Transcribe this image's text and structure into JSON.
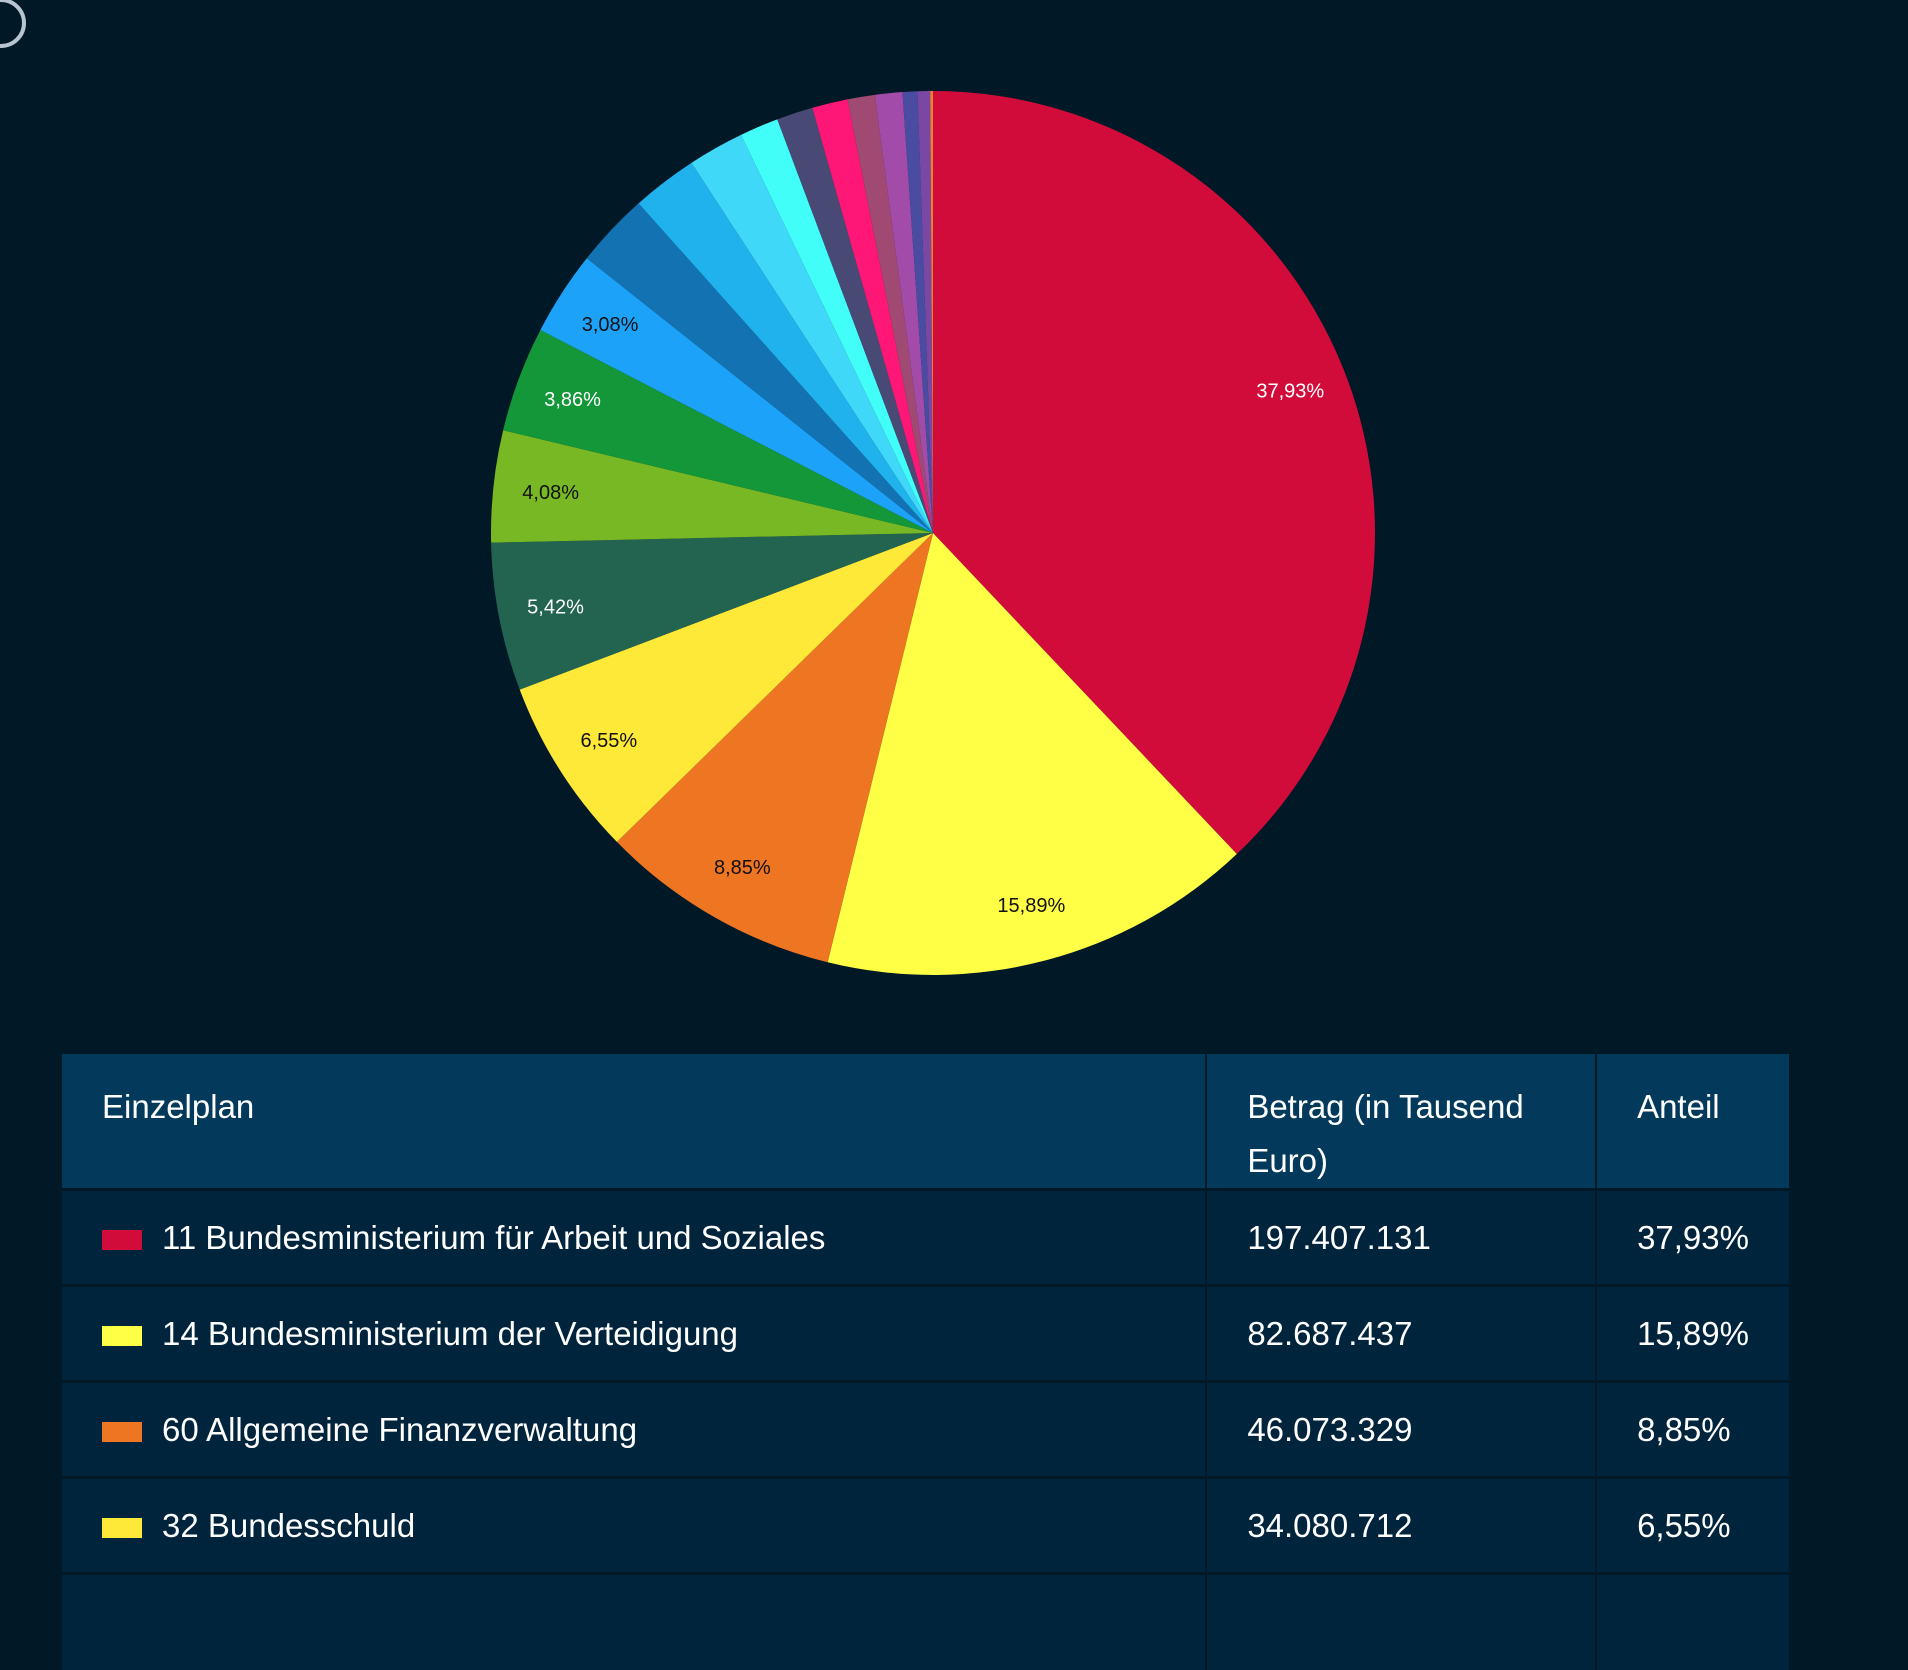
{
  "chart_data": {
    "type": "pie",
    "slices": [
      {
        "label": "37,93%",
        "value": 37.93,
        "color": "#D20C3A",
        "label_color": "#ffffff"
      },
      {
        "label": "15,89%",
        "value": 15.89,
        "color": "#FFFF46",
        "label_color": "#111111"
      },
      {
        "label": "8,85%",
        "value": 8.85,
        "color": "#EE7522",
        "label_color": "#111111"
      },
      {
        "label": "6,55%",
        "value": 6.55,
        "color": "#FEE838",
        "label_color": "#111111"
      },
      {
        "label": "5,42%",
        "value": 5.42,
        "color": "#236450",
        "label_color": "#ffffff"
      },
      {
        "label": "4,08%",
        "value": 4.08,
        "color": "#78B825",
        "label_color": "#111111"
      },
      {
        "label": "3,86%",
        "value": 3.86,
        "color": "#139739",
        "label_color": "#ffffff"
      },
      {
        "label": "3,08%",
        "value": 3.08,
        "color": "#1DA2FA",
        "label_color": "#111111"
      },
      {
        "label": "",
        "value": 2.72,
        "color": "#1373B2"
      },
      {
        "label": "",
        "value": 2.4,
        "color": "#20B2EC"
      },
      {
        "label": "",
        "value": 2.05,
        "color": "#40D8F9"
      },
      {
        "label": "",
        "value": 1.42,
        "color": "#41FFF8"
      },
      {
        "label": "",
        "value": 1.33,
        "color": "#484A75"
      },
      {
        "label": "",
        "value": 1.3,
        "color": "#FE1776"
      },
      {
        "label": "",
        "value": 1.0,
        "color": "#A04A73"
      },
      {
        "label": "",
        "value": 1.0,
        "color": "#A24BA8"
      },
      {
        "label": "",
        "value": 0.54,
        "color": "#4A4CA2"
      },
      {
        "label": "",
        "value": 0.46,
        "color": "#7A48A2"
      },
      {
        "label": "",
        "value": 0.1,
        "color": "#F08030"
      }
    ]
  },
  "table": {
    "headers": [
      "Einzelplan",
      "Betrag (in Tausend Euro)",
      "Anteil"
    ],
    "rows": [
      {
        "name": "11 Bundesministerium für Arbeit und Soziales",
        "amount": "197.407.131",
        "share": "37,93%",
        "color": "#D20C3A"
      },
      {
        "name": "14 Bundesministerium der Verteidigung",
        "amount": "82.687.437",
        "share": "15,89%",
        "color": "#FFFF46"
      },
      {
        "name": "60 Allgemeine Finanzverwaltung",
        "amount": "46.073.329",
        "share": "8,85%",
        "color": "#EE7522"
      },
      {
        "name": "32 Bundesschuld",
        "amount": "34.080.712",
        "share": "6,55%",
        "color": "#FEE838"
      }
    ]
  }
}
